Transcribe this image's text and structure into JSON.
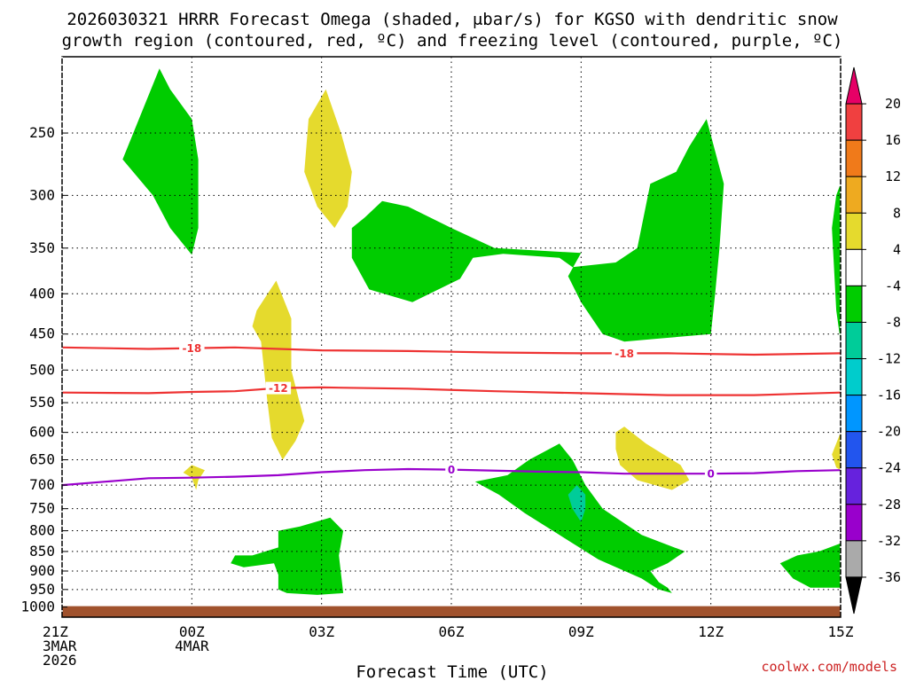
{
  "chart_data": {
    "type": "time-height cross section",
    "title_line1": "2026030321 HRRR Forecast Omega (shaded, μbar/s) for KGSO with dendritic snow",
    "title_line2": "growth region (contoured, red, ºC) and freezing level (contoured, purple, ºC)",
    "xlabel": "Forecast Time (UTC)",
    "credit": "coolwx.com/models",
    "x_range_hours": [
      0,
      18
    ],
    "x_ticks": [
      {
        "hour": 0,
        "lines": [
          "21Z",
          "3MAR",
          "2026"
        ]
      },
      {
        "hour": 3,
        "lines": [
          "00Z",
          "4MAR"
        ]
      },
      {
        "hour": 6,
        "lines": [
          "03Z"
        ]
      },
      {
        "hour": 9,
        "lines": [
          "06Z"
        ]
      },
      {
        "hour": 12,
        "lines": [
          "09Z"
        ]
      },
      {
        "hour": 15,
        "lines": [
          "12Z"
        ]
      },
      {
        "hour": 18,
        "lines": [
          "15Z"
        ]
      }
    ],
    "y_range_hpa": [
      1030,
      200
    ],
    "y_ticks": [
      250,
      300,
      350,
      400,
      450,
      500,
      550,
      600,
      650,
      700,
      750,
      800,
      850,
      900,
      950,
      1000
    ],
    "terrain_top_hpa": 1000,
    "terrain_color": "#a0522d",
    "contours": [
      {
        "name": "-18",
        "value": -18,
        "color": "#ee3333",
        "label_hours": [
          3.0,
          13.0
        ],
        "points": [
          [
            0,
            468
          ],
          [
            2,
            470
          ],
          [
            4,
            468
          ],
          [
            6,
            472
          ],
          [
            8,
            473
          ],
          [
            10,
            475
          ],
          [
            12,
            476
          ],
          [
            14,
            476
          ],
          [
            16,
            478
          ],
          [
            18,
            476
          ]
        ]
      },
      {
        "name": "-12",
        "value": -12,
        "color": "#ee3333",
        "label_hours": [
          5.0
        ],
        "points": [
          [
            0,
            534
          ],
          [
            2,
            535
          ],
          [
            3,
            533
          ],
          [
            4,
            532
          ],
          [
            5,
            527
          ],
          [
            6,
            526
          ],
          [
            8,
            528
          ],
          [
            10,
            532
          ],
          [
            12,
            535
          ],
          [
            14,
            538
          ],
          [
            16,
            538
          ],
          [
            18,
            534
          ]
        ]
      },
      {
        "name": "0",
        "value": 0,
        "color": "#9900cc",
        "label_hours": [
          9.0,
          15.0
        ],
        "points": [
          [
            0,
            700
          ],
          [
            1,
            693
          ],
          [
            2,
            686
          ],
          [
            3,
            685
          ],
          [
            4,
            683
          ],
          [
            5,
            680
          ],
          [
            6,
            674
          ],
          [
            7,
            670
          ],
          [
            8,
            668
          ],
          [
            9,
            669
          ],
          [
            11,
            673
          ],
          [
            12,
            674
          ],
          [
            13,
            677
          ],
          [
            14,
            677
          ],
          [
            15,
            677
          ],
          [
            16,
            676
          ],
          [
            17,
            672
          ],
          [
            18,
            670
          ]
        ]
      }
    ],
    "omega_regions": [
      {
        "level": -6,
        "color": "#00cc00",
        "points": [
          [
            2.25,
            207
          ],
          [
            2.5,
            220
          ],
          [
            3.0,
            240
          ],
          [
            3.15,
            270
          ],
          [
            3.15,
            330
          ],
          [
            3.0,
            357
          ],
          [
            2.5,
            330
          ],
          [
            2.1,
            300
          ],
          [
            1.4,
            270
          ]
        ]
      },
      {
        "level": -6,
        "color": "#00cc00",
        "points": [
          [
            8.0,
            310
          ],
          [
            9.0,
            330
          ],
          [
            10.0,
            350
          ],
          [
            12.0,
            355
          ],
          [
            11.7,
            380
          ],
          [
            12.0,
            410
          ],
          [
            12.5,
            450
          ],
          [
            13.0,
            460
          ],
          [
            15.0,
            450
          ],
          [
            15.1,
            400
          ],
          [
            15.2,
            350
          ],
          [
            15.3,
            290
          ],
          [
            14.9,
            240
          ],
          [
            14.5,
            260
          ],
          [
            14.2,
            280
          ],
          [
            13.6,
            290
          ],
          [
            13.3,
            350
          ],
          [
            12.8,
            365
          ],
          [
            11.8,
            370
          ],
          [
            11.5,
            360
          ],
          [
            10.2,
            356
          ],
          [
            9.5,
            360
          ],
          [
            9.2,
            383
          ],
          [
            8.1,
            410
          ],
          [
            7.1,
            395
          ],
          [
            6.7,
            360
          ],
          [
            6.7,
            330
          ],
          [
            7.0,
            320
          ],
          [
            7.4,
            305
          ]
        ]
      },
      {
        "level": -6,
        "color": "#00cc00",
        "points": [
          [
            9.55,
            693
          ],
          [
            10.1,
            720
          ],
          [
            10.7,
            760
          ],
          [
            11.5,
            810
          ],
          [
            12.4,
            870
          ],
          [
            13.4,
            920
          ],
          [
            13.6,
            935
          ],
          [
            13.8,
            950
          ],
          [
            14.1,
            960
          ],
          [
            14.0,
            945
          ],
          [
            13.8,
            930
          ],
          [
            13.6,
            900
          ],
          [
            14.0,
            880
          ],
          [
            14.4,
            850
          ],
          [
            13.4,
            810
          ],
          [
            12.5,
            750
          ],
          [
            12.1,
            700
          ],
          [
            11.8,
            650
          ],
          [
            11.5,
            620
          ],
          [
            10.8,
            650
          ],
          [
            10.3,
            680
          ]
        ]
      },
      {
        "level": -6,
        "color": "#00cc00",
        "points": [
          [
            6.2,
            770
          ],
          [
            6.5,
            800
          ],
          [
            6.4,
            860
          ],
          [
            6.5,
            960
          ],
          [
            5.9,
            965
          ],
          [
            5.2,
            960
          ],
          [
            5.0,
            950
          ],
          [
            5.0,
            910
          ],
          [
            4.9,
            880
          ],
          [
            4.2,
            890
          ],
          [
            3.9,
            880
          ],
          [
            4.0,
            860
          ],
          [
            4.4,
            860
          ],
          [
            5.0,
            840
          ],
          [
            5.0,
            800
          ],
          [
            5.5,
            790
          ]
        ]
      },
      {
        "level": -6,
        "color": "#00cc00",
        "points": [
          [
            16.6,
            880
          ],
          [
            17.0,
            860
          ],
          [
            17.5,
            850
          ],
          [
            18.0,
            830
          ],
          [
            18.0,
            945
          ],
          [
            17.3,
            945
          ],
          [
            16.9,
            920
          ]
        ]
      },
      {
        "level": -6,
        "color": "#00cc00",
        "points": [
          [
            17.9,
            300
          ],
          [
            18.0,
            290
          ],
          [
            18.0,
            460
          ],
          [
            17.9,
            420
          ],
          [
            17.8,
            330
          ]
        ]
      },
      {
        "level": 6,
        "color": "#e5da2d",
        "points": [
          [
            6.45,
            250
          ],
          [
            6.7,
            280
          ],
          [
            6.6,
            310
          ],
          [
            6.3,
            330
          ],
          [
            5.9,
            310
          ],
          [
            5.6,
            280
          ],
          [
            5.7,
            240
          ],
          [
            6.1,
            220
          ]
        ]
      },
      {
        "level": 6,
        "color": "#e5da2d",
        "points": [
          [
            4.95,
            385
          ],
          [
            5.3,
            430
          ],
          [
            5.3,
            500
          ],
          [
            5.6,
            580
          ],
          [
            5.4,
            615
          ],
          [
            5.1,
            650
          ],
          [
            4.85,
            610
          ],
          [
            4.75,
            550
          ],
          [
            4.6,
            460
          ],
          [
            4.4,
            440
          ],
          [
            4.5,
            420
          ]
        ]
      },
      {
        "level": 6,
        "color": "#e5da2d",
        "points": [
          [
            3.0,
            685
          ],
          [
            2.8,
            675
          ],
          [
            3.0,
            660
          ],
          [
            3.3,
            670
          ],
          [
            3.15,
            690
          ],
          [
            3.1,
            710
          ]
        ]
      },
      {
        "level": 6,
        "color": "#e5da2d",
        "points": [
          [
            13.0,
            590
          ],
          [
            13.5,
            620
          ],
          [
            14.3,
            660
          ],
          [
            14.5,
            690
          ],
          [
            14.1,
            710
          ],
          [
            13.3,
            690
          ],
          [
            12.9,
            660
          ],
          [
            12.8,
            630
          ],
          [
            12.8,
            600
          ]
        ]
      },
      {
        "level": 6,
        "color": "#e5da2d",
        "points": [
          [
            17.8,
            640
          ],
          [
            18.0,
            600
          ],
          [
            18.0,
            670
          ],
          [
            17.9,
            665
          ]
        ]
      },
      {
        "level": -10,
        "color": "#00cc99",
        "points": [
          [
            11.9,
            700
          ],
          [
            12.1,
            720
          ],
          [
            12.1,
            750
          ],
          [
            12.0,
            780
          ],
          [
            11.8,
            750
          ],
          [
            11.7,
            720
          ]
        ]
      }
    ],
    "colorbar": {
      "tick_labels": [
        "20",
        "16",
        "12",
        "8",
        "4",
        "-4",
        "-8",
        "-12",
        "-16",
        "-20",
        "-24",
        "-28",
        "-32",
        "-36"
      ],
      "colors": [
        "#e60066",
        "#f04040",
        "#f07a1a",
        "#eeaa20",
        "#e5da2d",
        "#ffffff",
        "#00cc00",
        "#00cc99",
        "#00cccc",
        "#0096ff",
        "#2255ee",
        "#6622dd",
        "#9900cc",
        "#aaaaaa",
        "#000000"
      ]
    }
  }
}
